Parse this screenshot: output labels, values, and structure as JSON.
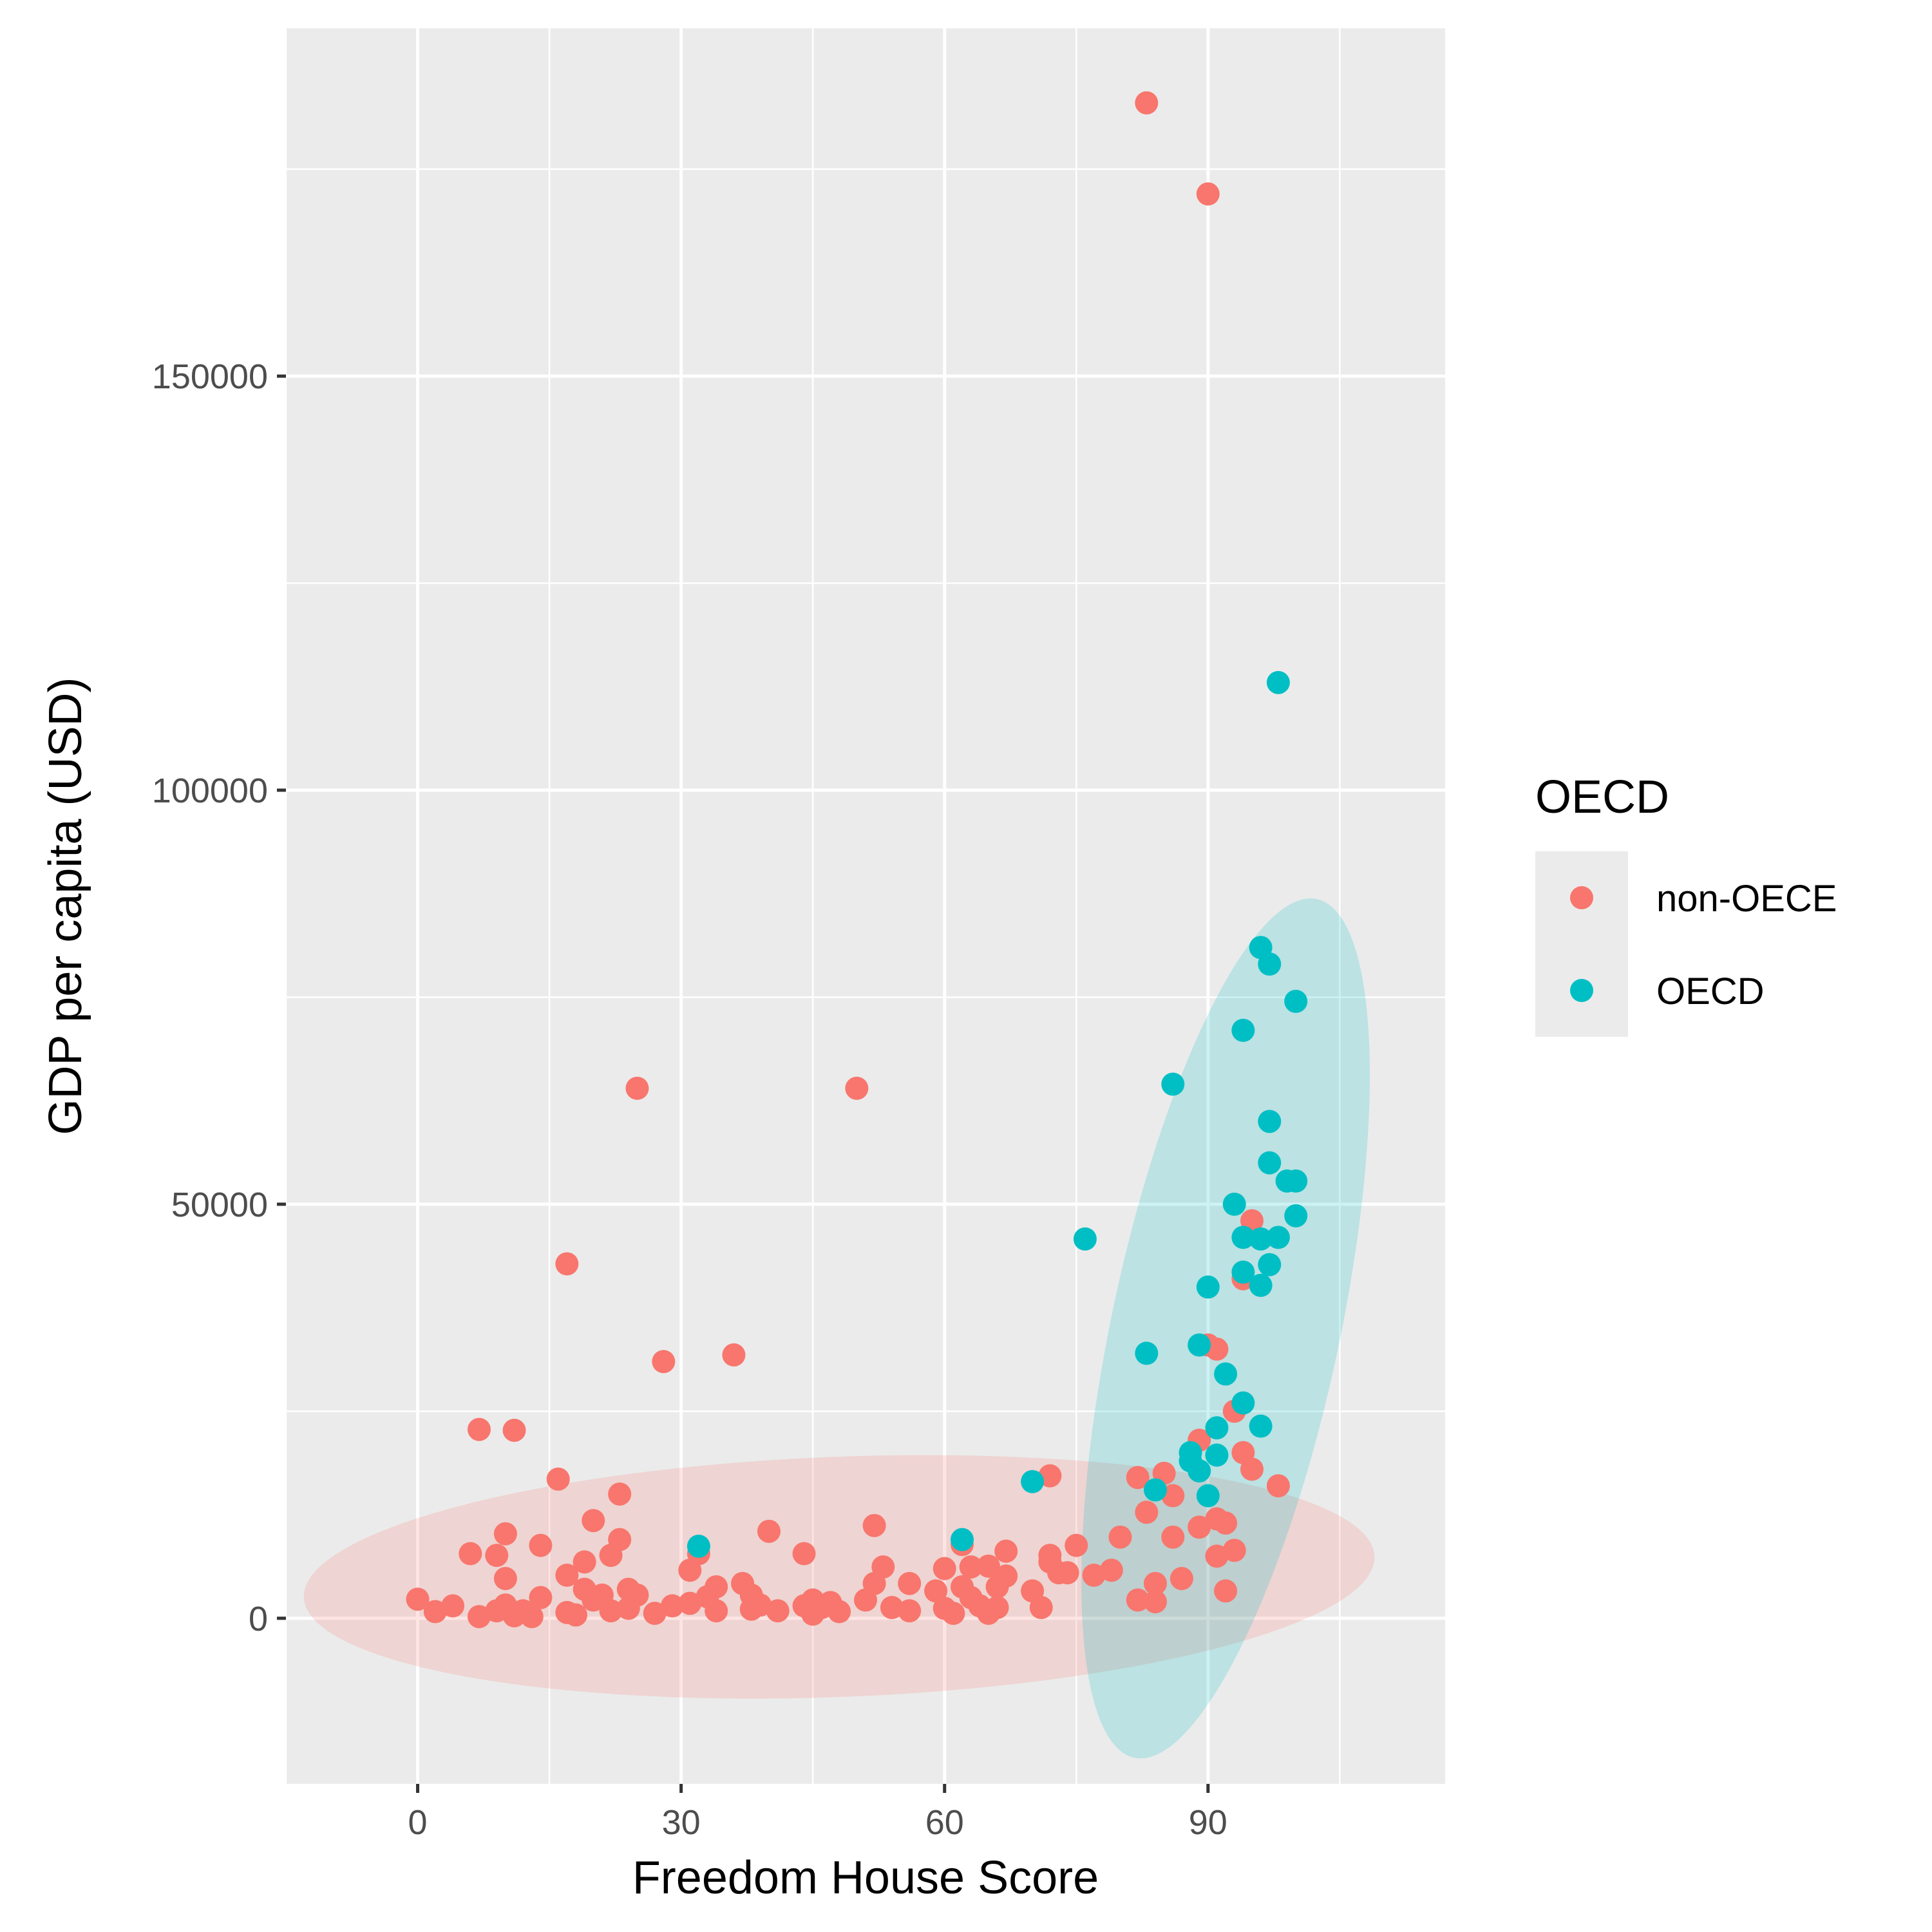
{
  "chart_data": {
    "type": "scatter",
    "title": "",
    "xlabel": "Freedom House Score",
    "ylabel": "GDP per capita (USD)",
    "xlim": [
      -15,
      117
    ],
    "ylim": [
      -20000,
      192000
    ],
    "x_ticks": [
      0,
      30,
      60,
      90
    ],
    "y_ticks": [
      0,
      50000,
      100000,
      150000
    ],
    "x_tick_labels": [
      "0",
      "30",
      "60",
      "90"
    ],
    "y_tick_labels": [
      "0",
      "50000",
      "100000",
      "150000"
    ],
    "grid": true,
    "legend": {
      "title": "OECD",
      "position": "right",
      "entries": [
        "non-OECE",
        "OECD"
      ]
    },
    "colors": {
      "non-OECE": "#F8766D",
      "OECD": "#00BFC4",
      "panel": "#EBEBEB",
      "grid": "#FFFFFF"
    },
    "ellipses": [
      {
        "series": "non-OECE",
        "cx": 48,
        "cy": 5000,
        "rx": 61,
        "ry": 14500,
        "angle_deg": -2.2
      },
      {
        "series": "OECD",
        "cx": 92,
        "cy": 35000,
        "rx": 13,
        "ry": 53000,
        "angle_deg": 12
      }
    ],
    "series": [
      {
        "name": "non-OECE",
        "points": [
          [
            83,
            183000
          ],
          [
            90,
            172000
          ],
          [
            25,
            64000
          ],
          [
            50,
            64000
          ],
          [
            17,
            42800
          ],
          [
            28,
            31000
          ],
          [
            36,
            31800
          ],
          [
            7,
            22800
          ],
          [
            11,
            22700
          ],
          [
            16,
            16800
          ],
          [
            23,
            15000
          ],
          [
            72,
            17200
          ],
          [
            82,
            17000
          ],
          [
            20,
            11800
          ],
          [
            10,
            10200
          ],
          [
            14,
            8800
          ],
          [
            6,
            7800
          ],
          [
            9,
            7600
          ],
          [
            19,
            6800
          ],
          [
            22,
            7600
          ],
          [
            23,
            9500
          ],
          [
            17,
            5200
          ],
          [
            31,
            5800
          ],
          [
            32,
            7800
          ],
          [
            40,
            10500
          ],
          [
            44,
            7800
          ],
          [
            52,
            11200
          ],
          [
            53,
            6200
          ],
          [
            56,
            4200
          ],
          [
            60,
            6000
          ],
          [
            62,
            8900
          ],
          [
            63,
            6200
          ],
          [
            65,
            6300
          ],
          [
            67,
            8100
          ],
          [
            72,
            7600
          ],
          [
            73,
            5500
          ],
          [
            75,
            8800
          ],
          [
            77,
            5200
          ],
          [
            79,
            5800
          ],
          [
            80,
            9800
          ],
          [
            83,
            12800
          ],
          [
            85,
            17500
          ],
          [
            86,
            14800
          ],
          [
            86,
            9800
          ],
          [
            87,
            4800
          ],
          [
            84,
            4200
          ],
          [
            82,
            2200
          ],
          [
            84,
            2000
          ],
          [
            89,
            21500
          ],
          [
            90,
            33000
          ],
          [
            91,
            32500
          ],
          [
            93,
            25000
          ],
          [
            94,
            20000
          ],
          [
            95,
            18000
          ],
          [
            95,
            48000
          ],
          [
            94,
            41000
          ],
          [
            89,
            11000
          ],
          [
            91,
            12000
          ],
          [
            92,
            11500
          ],
          [
            93,
            8200
          ],
          [
            91,
            7500
          ],
          [
            92,
            3300
          ],
          [
            98,
            16000
          ],
          [
            0,
            2300
          ],
          [
            2,
            800
          ],
          [
            4,
            1500
          ],
          [
            7,
            200
          ],
          [
            9,
            900
          ],
          [
            10,
            1600
          ],
          [
            10,
            4800
          ],
          [
            11,
            300
          ],
          [
            12,
            900
          ],
          [
            13,
            200
          ],
          [
            14,
            2500
          ],
          [
            17,
            700
          ],
          [
            18,
            400
          ],
          [
            19,
            3500
          ],
          [
            20,
            2200
          ],
          [
            21,
            2800
          ],
          [
            22,
            900
          ],
          [
            24,
            3500
          ],
          [
            25,
            2800
          ],
          [
            24,
            1200
          ],
          [
            27,
            600
          ],
          [
            29,
            1500
          ],
          [
            31,
            1800
          ],
          [
            33,
            2600
          ],
          [
            34,
            3800
          ],
          [
            34,
            900
          ],
          [
            37,
            4200
          ],
          [
            38,
            2800
          ],
          [
            38,
            1100
          ],
          [
            39,
            1600
          ],
          [
            41,
            900
          ],
          [
            44,
            1500
          ],
          [
            45,
            2200
          ],
          [
            45,
            500
          ],
          [
            46,
            1300
          ],
          [
            47,
            1900
          ],
          [
            48,
            800
          ],
          [
            51,
            2200
          ],
          [
            52,
            4200
          ],
          [
            54,
            1300
          ],
          [
            56,
            900
          ],
          [
            59,
            3300
          ],
          [
            60,
            1200
          ],
          [
            61,
            600
          ],
          [
            62,
            3800
          ],
          [
            63,
            2500
          ],
          [
            64,
            1500
          ],
          [
            65,
            600
          ],
          [
            66,
            3800
          ],
          [
            66,
            1300
          ],
          [
            67,
            5100
          ],
          [
            70,
            3300
          ],
          [
            71,
            1300
          ],
          [
            72,
            6800
          ],
          [
            74,
            5500
          ]
        ]
      },
      {
        "name": "OECD",
        "points": [
          [
            98,
            113000
          ],
          [
            96,
            81000
          ],
          [
            97,
            79000
          ],
          [
            100,
            74500
          ],
          [
            94,
            71000
          ],
          [
            86,
            64500
          ],
          [
            97,
            60000
          ],
          [
            97,
            55000
          ],
          [
            99,
            52800
          ],
          [
            100,
            52800
          ],
          [
            93,
            50000
          ],
          [
            100,
            48600
          ],
          [
            76,
            45800
          ],
          [
            94,
            46000
          ],
          [
            96,
            45800
          ],
          [
            98,
            46000
          ],
          [
            97,
            42700
          ],
          [
            94,
            41800
          ],
          [
            96,
            40200
          ],
          [
            90,
            40000
          ],
          [
            89,
            33000
          ],
          [
            83,
            32000
          ],
          [
            92,
            29500
          ],
          [
            94,
            26000
          ],
          [
            91,
            23000
          ],
          [
            96,
            23200
          ],
          [
            88,
            20000
          ],
          [
            91,
            19700
          ],
          [
            88,
            19000
          ],
          [
            89,
            17800
          ],
          [
            70,
            16500
          ],
          [
            84,
            15500
          ],
          [
            90,
            14800
          ],
          [
            32,
            8700
          ],
          [
            62,
            9500
          ]
        ]
      }
    ]
  }
}
